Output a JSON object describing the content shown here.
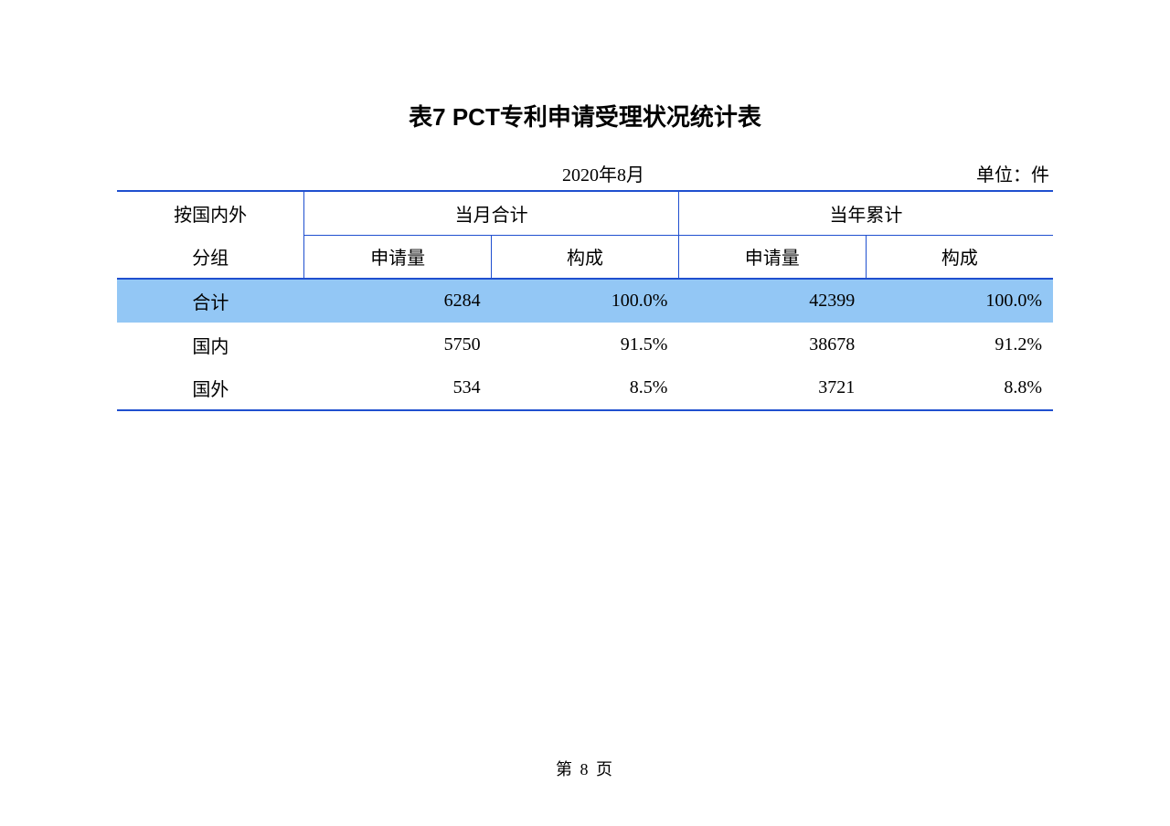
{
  "title": "表7  PCT专利申请受理状况统计表",
  "date": "2020年8月",
  "unit_label": "单位：件",
  "table": {
    "type": "table",
    "border_color": "#1f4fcf",
    "highlight_row_bg": "#93c7f5",
    "background_color": "#ffffff",
    "text_color": "#000000",
    "title_fontsize": 26,
    "body_fontsize": 20,
    "header": {
      "group_col_1": "按国内外",
      "group_col_2": "分组",
      "monthly_total": "当月合计",
      "yearly_total": "当年累计",
      "applications": "申请量",
      "composition": "构成"
    },
    "rows": [
      {
        "label": "合计",
        "month_apps": "6284",
        "month_comp": "100.0%",
        "year_apps": "42399",
        "year_comp": "100.0%",
        "highlight": true
      },
      {
        "label": "国内",
        "month_apps": "5750",
        "month_comp": "91.5%",
        "year_apps": "38678",
        "year_comp": "91.2%",
        "highlight": false
      },
      {
        "label": "国外",
        "month_apps": "534",
        "month_comp": "8.5%",
        "year_apps": "3721",
        "year_comp": "8.8%",
        "highlight": false
      }
    ]
  },
  "page_number": "第 8 页"
}
